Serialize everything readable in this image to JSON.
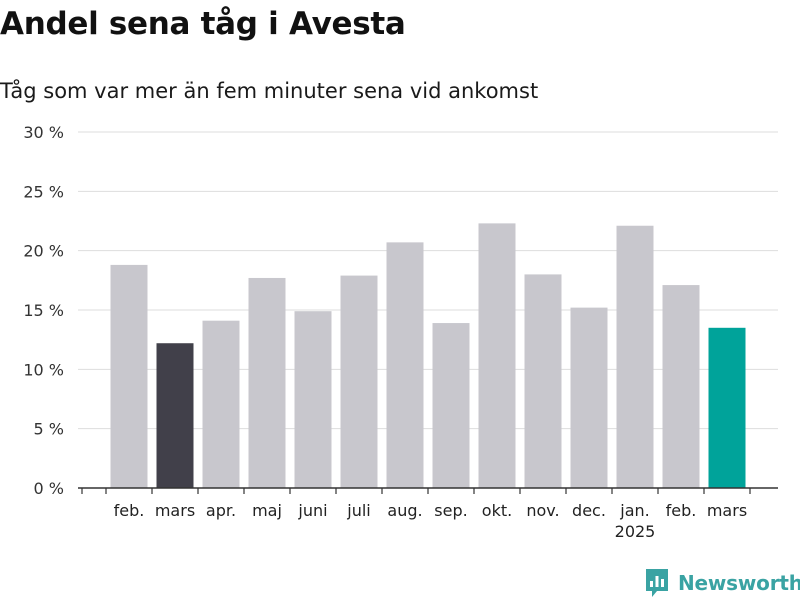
{
  "header": {
    "title": "Andel sena tåg i Avesta",
    "subtitle": "Tåg som var mer än fem minuter sena vid ankomst"
  },
  "brand": {
    "name": "Newsworthy",
    "icon": "newsworthy-logo-icon",
    "color": "#3aa3a3"
  },
  "colors": {
    "default_bar": "#c8c7cd",
    "previous_year_bar": "#41404a",
    "current_bar": "#00a39a",
    "grid": "#dddddd",
    "axis": "#333333"
  },
  "chart_data": {
    "type": "bar",
    "ylim": [
      0,
      30
    ],
    "yticks": [
      0,
      5,
      10,
      15,
      20,
      25,
      30
    ],
    "ytick_labels": [
      "0 %",
      "5 %",
      "10 %",
      "15 %",
      "20 %",
      "25 %",
      "30 %"
    ],
    "categories": [
      "feb.",
      "mars",
      "apr.",
      "maj",
      "juni",
      "juli",
      "aug.",
      "sep.",
      "okt.",
      "nov.",
      "dec.",
      "jan.",
      "feb.",
      "mars"
    ],
    "year_labels": [
      {
        "index": 11,
        "label": "2025"
      }
    ],
    "values": [
      18.8,
      12.2,
      14.1,
      17.7,
      14.9,
      17.9,
      20.7,
      13.9,
      22.3,
      18.0,
      15.2,
      22.1,
      17.1,
      13.5
    ],
    "highlight": [
      {
        "index": 1,
        "color": "#41404a"
      },
      {
        "index": 13,
        "color": "#00a39a"
      }
    ],
    "grid": true
  }
}
